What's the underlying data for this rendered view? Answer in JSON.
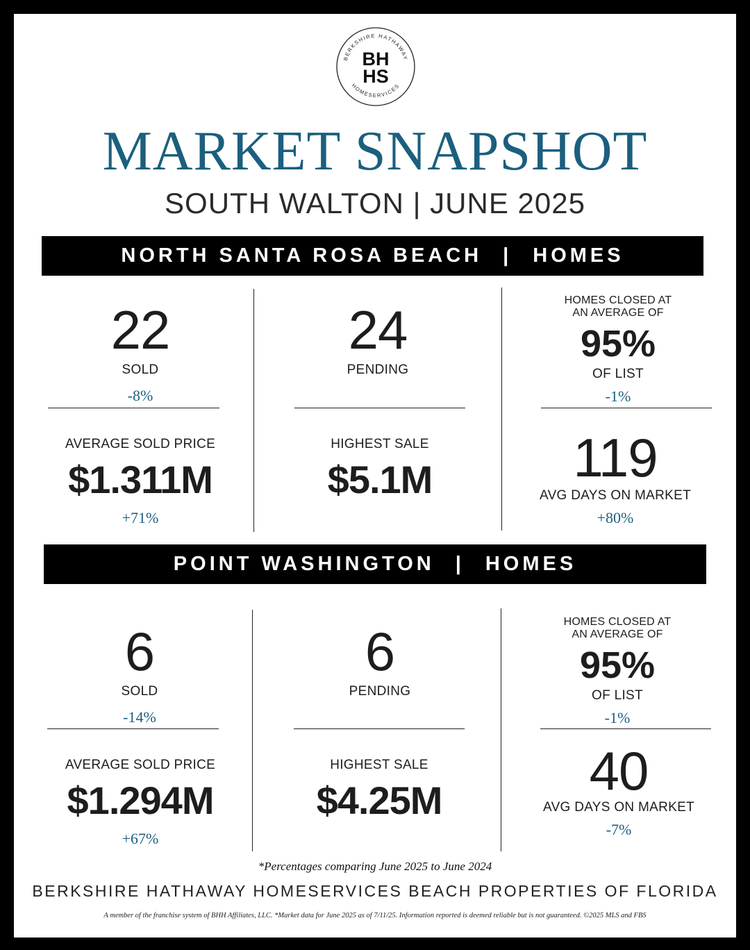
{
  "logo": {
    "monogram_top": "BH",
    "monogram_bottom": "HS",
    "ring_top": "BERKSHIRE HATHAWAY",
    "ring_bottom": "HOMESERVICES"
  },
  "header": {
    "title": "MARKET SNAPSHOT",
    "subtitle": "SOUTH WALTON | JUNE 2025"
  },
  "sections": [
    {
      "area": "NORTH SANTA ROSA BEACH",
      "separator": "|",
      "type": "HOMES",
      "sold": {
        "value": "22",
        "label": "SOLD",
        "change": "-8%"
      },
      "pending": {
        "value": "24",
        "label": "PENDING"
      },
      "list_ratio": {
        "line1": "HOMES CLOSED AT",
        "line2": "AN AVERAGE OF",
        "value": "95%",
        "label": "OF LIST",
        "change": "-1%"
      },
      "avg_price": {
        "label": "AVERAGE SOLD PRICE",
        "value": "$1.311M",
        "change": "+71%"
      },
      "highest": {
        "label": "HIGHEST SALE",
        "value": "$5.1M"
      },
      "dom": {
        "value": "119",
        "label": "AVG DAYS ON MARKET",
        "change": "+80%"
      }
    },
    {
      "area": "POINT WASHINGTON",
      "separator": "|",
      "type": "HOMES",
      "sold": {
        "value": "6",
        "label": "SOLD",
        "change": "-14%"
      },
      "pending": {
        "value": "6",
        "label": "PENDING"
      },
      "list_ratio": {
        "line1": "HOMES CLOSED AT",
        "line2": "AN AVERAGE OF",
        "value": "95%",
        "label": "OF LIST",
        "change": "-1%"
      },
      "avg_price": {
        "label": "AVERAGE SOLD PRICE",
        "value": "$1.294M",
        "change": "+67%"
      },
      "highest": {
        "label": "HIGHEST SALE",
        "value": "$4.25M"
      },
      "dom": {
        "value": "40",
        "label": "AVG DAYS ON MARKET",
        "change": "-7%"
      }
    }
  ],
  "footer": {
    "note": "*Percentages comparing June 2025 to June 2024",
    "brand": "BERKSHIRE HATHAWAY HOMESERVICES BEACH PROPERTIES OF FLORIDA",
    "legal": "A member of the franchise system of BHH Affiliates, LLC. *Market data for June 2025 as of 7/11/25. Information reported is deemed reliable but is not guaranteed. ©2025 MLS and FBS"
  },
  "colors": {
    "accent": "#1b5f7e",
    "text": "#1d1d1d",
    "band": "#000000",
    "frame": "#000000"
  }
}
